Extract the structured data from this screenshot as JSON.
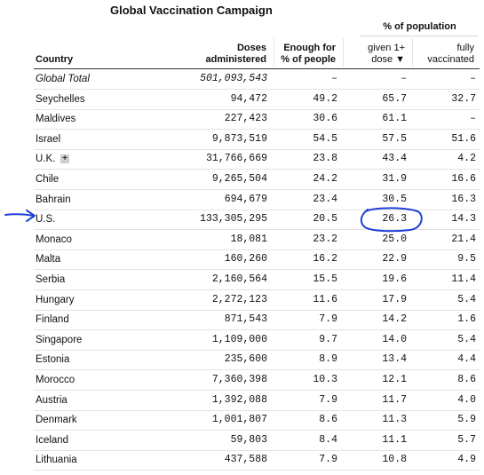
{
  "title": "Global Vaccination Campaign",
  "group_header": "% of population",
  "columns": {
    "country": "Country",
    "doses_1": "Doses",
    "doses_2": "administered",
    "enough_1": "Enough for",
    "enough_2": "% of people",
    "given_1": "given 1+",
    "given_2": "dose ▼",
    "fully_1": "fully",
    "fully_2": "vaccinated"
  },
  "rows": [
    {
      "country": "Global Total",
      "doses": "501,093,543",
      "enough": "–",
      "given": "–",
      "fully": "–"
    },
    {
      "country": "Seychelles",
      "doses": "94,472",
      "enough": "49.2",
      "given": "65.7",
      "fully": "32.7"
    },
    {
      "country": "Maldives",
      "doses": "227,423",
      "enough": "30.6",
      "given": "61.1",
      "fully": "–"
    },
    {
      "country": "Israel",
      "doses": "9,873,519",
      "enough": "54.5",
      "given": "57.5",
      "fully": "51.6"
    },
    {
      "country": "U.K.",
      "doses": "31,766,669",
      "enough": "23.8",
      "given": "43.4",
      "fully": "4.2"
    },
    {
      "country": "Chile",
      "doses": "9,265,504",
      "enough": "24.2",
      "given": "31.9",
      "fully": "16.6"
    },
    {
      "country": "Bahrain",
      "doses": "694,679",
      "enough": "23.4",
      "given": "30.5",
      "fully": "16.3"
    },
    {
      "country": "U.S.",
      "doses": "133,305,295",
      "enough": "20.5",
      "given": "26.3",
      "fully": "14.3"
    },
    {
      "country": "Monaco",
      "doses": "18,081",
      "enough": "23.2",
      "given": "25.0",
      "fully": "21.4"
    },
    {
      "country": "Malta",
      "doses": "160,260",
      "enough": "16.2",
      "given": "22.9",
      "fully": "9.5"
    },
    {
      "country": "Serbia",
      "doses": "2,160,564",
      "enough": "15.5",
      "given": "19.6",
      "fully": "11.4"
    },
    {
      "country": "Hungary",
      "doses": "2,272,123",
      "enough": "11.6",
      "given": "17.9",
      "fully": "5.4"
    },
    {
      "country": "Finland",
      "doses": "871,543",
      "enough": "7.9",
      "given": "14.2",
      "fully": "1.6"
    },
    {
      "country": "Singapore",
      "doses": "1,109,000",
      "enough": "9.7",
      "given": "14.0",
      "fully": "5.4"
    },
    {
      "country": "Estonia",
      "doses": "235,600",
      "enough": "8.9",
      "given": "13.4",
      "fully": "4.4"
    },
    {
      "country": "Morocco",
      "doses": "7,360,398",
      "enough": "10.3",
      "given": "12.1",
      "fully": "8.6"
    },
    {
      "country": "Austria",
      "doses": "1,392,088",
      "enough": "7.9",
      "given": "11.7",
      "fully": "4.0"
    },
    {
      "country": "Denmark",
      "doses": "1,001,807",
      "enough": "8.6",
      "given": "11.3",
      "fully": "5.9"
    },
    {
      "country": "Iceland",
      "doses": "59,803",
      "enough": "8.4",
      "given": "11.1",
      "fully": "5.7"
    },
    {
      "country": "Lithuania",
      "doses": "437,588",
      "enough": "7.9",
      "given": "10.8",
      "fully": "4.9"
    }
  ],
  "expand_symbol": "+",
  "colors": {
    "annotation": "#1f3fd6",
    "rule": "#333333"
  },
  "annotation": {
    "icons": [
      "arrow-icon",
      "circle-highlight-icon"
    ]
  }
}
